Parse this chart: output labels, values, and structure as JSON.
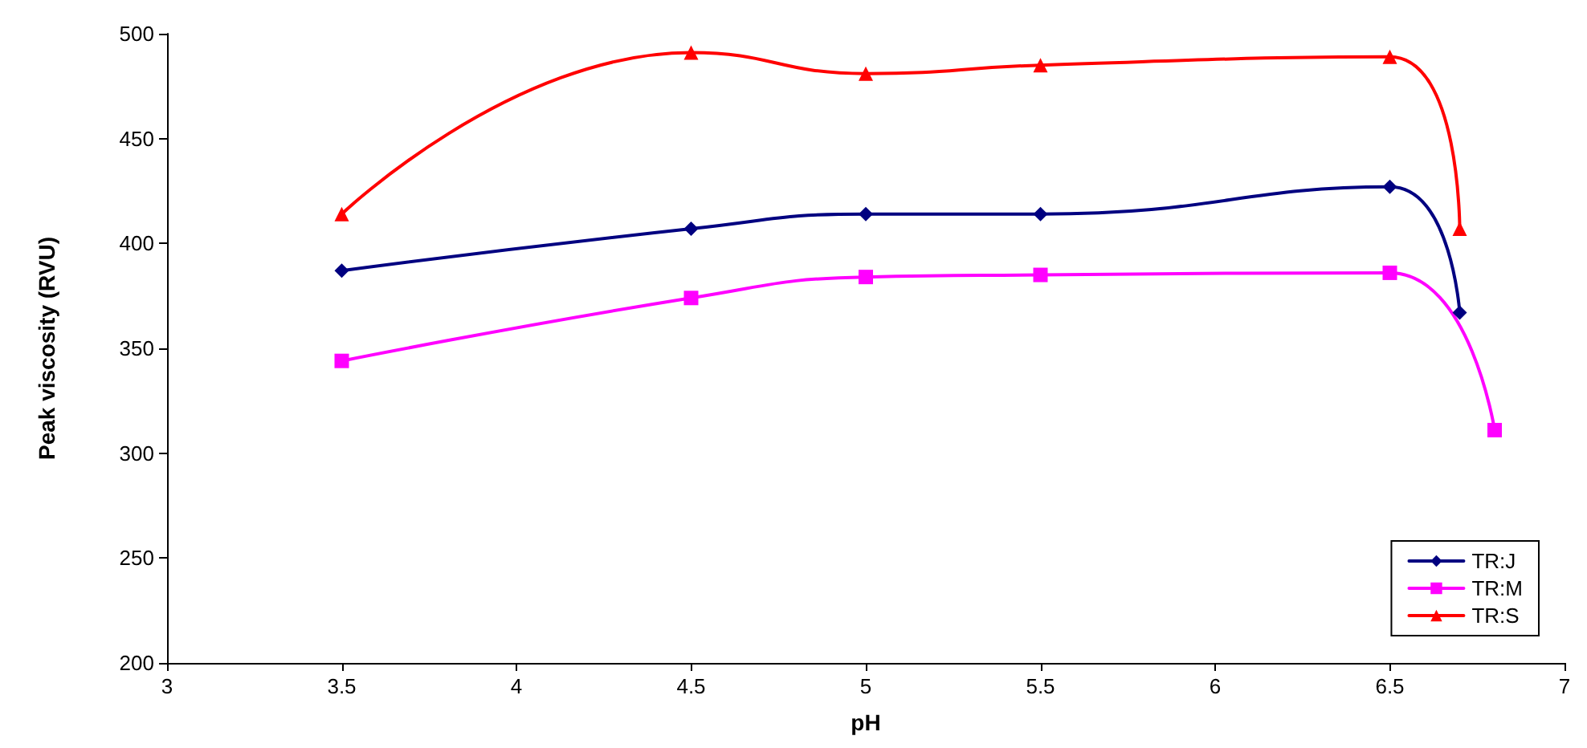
{
  "chart_data": {
    "type": "line",
    "xlabel": "pH",
    "ylabel": "Peak viscosity (RVU)",
    "xlim": [
      3,
      7
    ],
    "xticks": [
      3,
      3.5,
      4,
      4.5,
      5,
      5.5,
      6,
      6.5,
      7
    ],
    "ylim": [
      200,
      500
    ],
    "yticks": [
      200,
      250,
      300,
      350,
      400,
      450,
      500
    ],
    "grid": false,
    "legend": "bottom right",
    "line_style": "solid",
    "series": [
      {
        "name": "TR:J",
        "color": "#000080",
        "marker": "diamond",
        "x": [
          3.5,
          4.5,
          5,
          5.5,
          6.5,
          6.7
        ],
        "values": [
          387,
          407,
          414,
          414,
          427,
          367
        ]
      },
      {
        "name": "TR:M",
        "color": "#ff00ff",
        "marker": "square",
        "x": [
          3.5,
          4.5,
          5,
          5.5,
          6.5,
          6.8
        ],
        "values": [
          344,
          374,
          384,
          385,
          386,
          311
        ]
      },
      {
        "name": "TR:S",
        "color": "#ff0000",
        "marker": "triangle",
        "x": [
          3.5,
          4.5,
          5,
          5.5,
          6.5,
          6.7
        ],
        "values": [
          414,
          491,
          481,
          485,
          489,
          407
        ]
      }
    ]
  }
}
